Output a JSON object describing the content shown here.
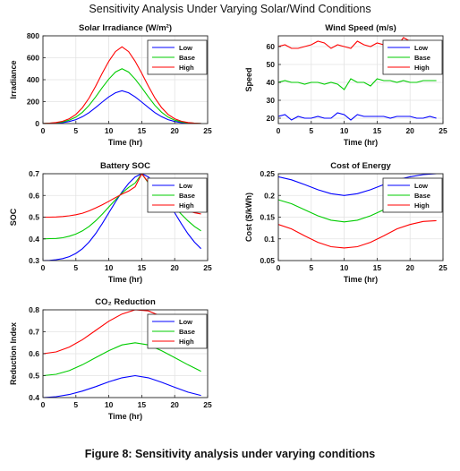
{
  "figure": {
    "title": "Sensitivity Analysis Under Varying Solar/Wind Conditions",
    "caption": "Figure 8: Sensitivity analysis under varying conditions"
  },
  "chart_data": [
    {
      "type": "line",
      "title": "Solar Irradiance (W/m²)",
      "xlabel": "Time (hr)",
      "ylabel": "Irradiance",
      "xlim": [
        0,
        25
      ],
      "ylim": [
        0,
        800
      ],
      "xticks": [
        0,
        5,
        10,
        15,
        20,
        25
      ],
      "yticks": [
        0,
        200,
        400,
        600,
        800
      ],
      "grid": true,
      "legend_position": "top-right",
      "x": [
        0,
        1,
        2,
        3,
        4,
        5,
        6,
        7,
        8,
        9,
        10,
        11,
        12,
        13,
        14,
        15,
        16,
        17,
        18,
        19,
        20,
        21,
        22,
        23,
        24
      ],
      "series": [
        {
          "name": "Low",
          "color": "#0000ff",
          "values": [
            1,
            2,
            4,
            9,
            19,
            36,
            63,
            100,
            146,
            196,
            243,
            281,
            300,
            281,
            243,
            196,
            146,
            100,
            63,
            36,
            19,
            9,
            4,
            2,
            1
          ]
        },
        {
          "name": "Base",
          "color": "#00cc00",
          "values": [
            1,
            3,
            7,
            15,
            31,
            59,
            104,
            166,
            243,
            327,
            406,
            469,
            500,
            469,
            406,
            327,
            243,
            166,
            104,
            59,
            31,
            15,
            7,
            3,
            1
          ]
        },
        {
          "name": "High",
          "color": "#ff0000",
          "values": [
            1,
            4,
            10,
            21,
            44,
            83,
            146,
            233,
            340,
            458,
            568,
            656,
            700,
            656,
            568,
            458,
            340,
            233,
            146,
            83,
            44,
            21,
            10,
            4,
            1
          ]
        }
      ]
    },
    {
      "type": "line",
      "title": "Wind Speed (m/s)",
      "xlabel": "Time (hr)",
      "ylabel": "Speed",
      "xlim": [
        0,
        25
      ],
      "ylim": [
        17,
        66
      ],
      "xticks": [
        0,
        5,
        10,
        15,
        20,
        25
      ],
      "yticks": [
        20,
        30,
        40,
        50,
        60
      ],
      "grid": true,
      "legend_position": "top-right",
      "x": [
        0,
        1,
        2,
        3,
        4,
        5,
        6,
        7,
        8,
        9,
        10,
        11,
        12,
        13,
        14,
        15,
        16,
        17,
        18,
        19,
        20,
        21,
        22,
        23,
        24
      ],
      "series": [
        {
          "name": "Low",
          "color": "#0000ff",
          "values": [
            21,
            22,
            19,
            21,
            20,
            20,
            21,
            20,
            20,
            23,
            22,
            19,
            22,
            21,
            21,
            21,
            21,
            20,
            21,
            21,
            21,
            20,
            20,
            21,
            20
          ]
        },
        {
          "name": "Base",
          "color": "#00cc00",
          "values": [
            40,
            41,
            40,
            40,
            39,
            40,
            40,
            39,
            40,
            39,
            36,
            42,
            40,
            40,
            38,
            42,
            41,
            41,
            40,
            41,
            40,
            40,
            41,
            41,
            41
          ]
        },
        {
          "name": "High",
          "color": "#ff0000",
          "values": [
            60,
            61,
            59,
            59,
            60,
            61,
            63,
            62,
            59,
            61,
            60,
            59,
            63,
            61,
            60,
            62,
            61,
            62,
            60,
            65,
            63,
            61,
            60,
            61,
            61
          ]
        }
      ]
    },
    {
      "type": "line",
      "title": "Battery SOC",
      "xlabel": "Time (hr)",
      "ylabel": "SOC",
      "xlim": [
        0,
        25
      ],
      "ylim": [
        0.3,
        0.7
      ],
      "xticks": [
        0,
        5,
        10,
        15,
        20,
        25
      ],
      "yticks": [
        0.3,
        0.4,
        0.5,
        0.6,
        0.7
      ],
      "grid": true,
      "legend_position": "top-right",
      "x": [
        0,
        1,
        2,
        3,
        4,
        5,
        6,
        7,
        8,
        9,
        10,
        11,
        12,
        13,
        14,
        15,
        16,
        17,
        18,
        19,
        20,
        21,
        22,
        23,
        24
      ],
      "series": [
        {
          "name": "Low",
          "color": "#0000ff",
          "values": [
            0.3,
            0.301,
            0.304,
            0.309,
            0.318,
            0.333,
            0.355,
            0.385,
            0.424,
            0.47,
            0.52,
            0.57,
            0.616,
            0.655,
            0.685,
            0.7,
            0.685,
            0.655,
            0.616,
            0.57,
            0.52,
            0.47,
            0.424,
            0.385,
            0.355
          ]
        },
        {
          "name": "Base",
          "color": "#00cc00",
          "values": [
            0.4,
            0.401,
            0.402,
            0.405,
            0.412,
            0.422,
            0.437,
            0.457,
            0.483,
            0.513,
            0.547,
            0.58,
            0.611,
            0.637,
            0.657,
            0.7,
            0.657,
            0.637,
            0.611,
            0.58,
            0.547,
            0.513,
            0.483,
            0.457,
            0.437
          ]
        },
        {
          "name": "High",
          "color": "#ff0000",
          "values": [
            0.5,
            0.5,
            0.501,
            0.503,
            0.506,
            0.511,
            0.518,
            0.529,
            0.542,
            0.557,
            0.573,
            0.59,
            0.606,
            0.62,
            0.64,
            0.7,
            0.66,
            0.62,
            0.6,
            0.58,
            0.56,
            0.54,
            0.53,
            0.52,
            0.515
          ]
        }
      ]
    },
    {
      "type": "line",
      "title": "Cost of Energy",
      "xlabel": "Time (hr)",
      "ylabel": "Cost ($/kWh)",
      "xlim": [
        0,
        25
      ],
      "ylim": [
        0.05,
        0.25
      ],
      "xticks": [
        0,
        5,
        10,
        15,
        20,
        25
      ],
      "yticks": [
        0.05,
        0.1,
        0.15,
        0.2,
        0.25
      ],
      "grid": true,
      "legend_position": "top-right",
      "x": [
        0,
        2,
        4,
        6,
        8,
        10,
        12,
        14,
        16,
        18,
        20,
        22,
        24
      ],
      "series": [
        {
          "name": "Low",
          "color": "#0000ff",
          "values": [
            0.243,
            0.236,
            0.225,
            0.213,
            0.204,
            0.2,
            0.204,
            0.213,
            0.225,
            0.236,
            0.243,
            0.248,
            0.25
          ]
        },
        {
          "name": "Base",
          "color": "#00cc00",
          "values": [
            0.19,
            0.181,
            0.167,
            0.153,
            0.143,
            0.139,
            0.143,
            0.153,
            0.167,
            0.181,
            0.19,
            0.196,
            0.198
          ]
        },
        {
          "name": "High",
          "color": "#ff0000",
          "values": [
            0.133,
            0.123,
            0.107,
            0.092,
            0.082,
            0.079,
            0.082,
            0.092,
            0.107,
            0.123,
            0.133,
            0.14,
            0.142
          ]
        }
      ]
    },
    {
      "type": "line",
      "title": "CO₂ Reduction",
      "xlabel": "Time (hr)",
      "ylabel": "Reduction Index",
      "xlim": [
        0,
        25
      ],
      "ylim": [
        0.4,
        0.8
      ],
      "xticks": [
        0,
        5,
        10,
        15,
        20,
        25
      ],
      "yticks": [
        0.4,
        0.5,
        0.6,
        0.7,
        0.8
      ],
      "grid": true,
      "legend_position": "top-right",
      "x": [
        0,
        2,
        4,
        6,
        8,
        10,
        12,
        14,
        16,
        18,
        20,
        22,
        24
      ],
      "series": [
        {
          "name": "Low",
          "color": "#0000ff",
          "values": [
            0.4,
            0.404,
            0.414,
            0.43,
            0.45,
            0.472,
            0.49,
            0.5,
            0.49,
            0.47,
            0.447,
            0.425,
            0.41
          ]
        },
        {
          "name": "Base",
          "color": "#00cc00",
          "values": [
            0.5,
            0.506,
            0.523,
            0.55,
            0.582,
            0.614,
            0.64,
            0.65,
            0.64,
            0.614,
            0.582,
            0.55,
            0.52
          ]
        },
        {
          "name": "High",
          "color": "#ff0000",
          "values": [
            0.6,
            0.608,
            0.63,
            0.664,
            0.706,
            0.748,
            0.781,
            0.8,
            0.795,
            0.77,
            0.73,
            0.69,
            0.655
          ]
        }
      ]
    }
  ]
}
